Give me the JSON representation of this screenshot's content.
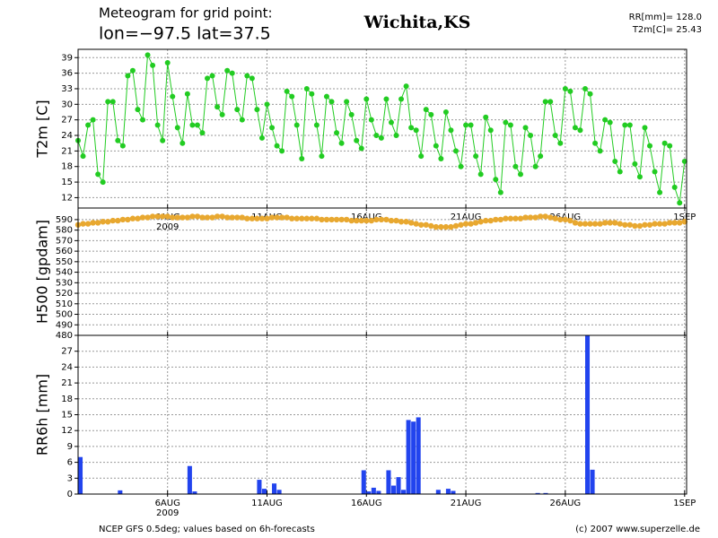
{
  "header": {
    "title_line1": "Meteogram for grid point:",
    "title_line2": "lon=−97.5  lat=37.5",
    "location": "Wichita,KS",
    "summary_rr": "RR[mm]= 128.0",
    "summary_t2m": "T2m[C]= 25.43"
  },
  "footer": {
    "source": "NCEP GFS 0.5deg; values based on 6h-forecasts",
    "credit": "(c) 2007 www.superzelle.de"
  },
  "chart_data": [
    {
      "type": "line",
      "y_label": "T2m [C]",
      "color": "#22cc22",
      "ylim": [
        10,
        40.6
      ],
      "yticks": [
        12,
        15,
        18,
        21,
        24,
        27,
        30,
        33,
        36,
        39
      ],
      "grid": true,
      "xlim": [
        1.5,
        32.1
      ],
      "xticks": [
        {
          "value": 6,
          "label": "6AUG"
        },
        {
          "value": 11,
          "label": "11AUG"
        },
        {
          "value": 16,
          "label": "16AUG"
        },
        {
          "value": 21,
          "label": "21AUG"
        },
        {
          "value": 26,
          "label": "26AUG"
        },
        {
          "value": 32,
          "label": "1SEP"
        }
      ],
      "year_label": "2009",
      "x": [
        1.5,
        1.75,
        2,
        2.25,
        2.5,
        2.75,
        3,
        3.25,
        3.5,
        3.75,
        4,
        4.25,
        4.5,
        4.75,
        5,
        5.25,
        5.5,
        5.75,
        6,
        6.25,
        6.5,
        6.75,
        7,
        7.25,
        7.5,
        7.75,
        8,
        8.25,
        8.5,
        8.75,
        9,
        9.25,
        9.5,
        9.75,
        10,
        10.25,
        10.5,
        10.75,
        11,
        11.25,
        11.5,
        11.75,
        12,
        12.25,
        12.5,
        12.75,
        13,
        13.25,
        13.5,
        13.75,
        14,
        14.25,
        14.5,
        14.75,
        15,
        15.25,
        15.5,
        15.75,
        16,
        16.25,
        16.5,
        16.75,
        17,
        17.25,
        17.5,
        17.75,
        18,
        18.25,
        18.5,
        18.75,
        19,
        19.25,
        19.5,
        19.75,
        20,
        20.25,
        20.5,
        20.75,
        21,
        21.25,
        21.5,
        21.75,
        22,
        22.25,
        22.5,
        22.75,
        23,
        23.25,
        23.5,
        23.75,
        24,
        24.25,
        24.5,
        24.75,
        25,
        25.25,
        25.5,
        25.75,
        26,
        26.25,
        26.5,
        26.75,
        27,
        27.25,
        27.5,
        27.75,
        28,
        28.25,
        28.5,
        28.75,
        29,
        29.25,
        29.5,
        29.75,
        30,
        30.25,
        30.5,
        30.75,
        31,
        31.25,
        31.5,
        31.75,
        32
      ],
      "values": [
        23,
        20,
        26,
        27,
        16.5,
        15,
        30.5,
        30.5,
        23,
        22,
        35.5,
        36.5,
        29,
        27,
        39.5,
        37.5,
        26,
        23,
        38,
        31.5,
        25.5,
        22.5,
        32,
        26,
        26,
        24.5,
        35,
        35.5,
        29.5,
        28,
        36.5,
        36,
        29,
        27,
        35.5,
        35,
        29,
        23.5,
        30,
        25.5,
        22,
        21,
        32.5,
        31.5,
        26,
        19.5,
        33,
        32,
        26,
        20,
        31.5,
        30.5,
        24.5,
        22.5,
        30.5,
        28,
        23,
        21.5,
        31,
        27,
        24,
        23.5,
        31,
        26.5,
        24,
        31,
        33.5,
        25.5,
        25,
        20,
        29,
        28,
        22,
        19.5,
        28.5,
        25,
        21,
        18,
        26,
        26,
        20,
        16.5,
        27.5,
        25,
        15.5,
        13,
        26.5,
        26,
        18,
        16.5,
        25.5,
        24,
        18,
        20,
        30.5,
        30.5,
        24,
        22.5,
        33,
        32.5,
        25.5,
        25,
        33,
        32,
        22.5,
        21,
        27,
        26.5,
        19,
        17,
        26,
        26,
        18.5,
        16,
        25.5,
        22,
        17,
        13,
        22.5,
        22,
        14,
        11,
        19
      ]
    },
    {
      "type": "scatter",
      "y_label": "H500 [gpdam]",
      "color": "#e8a830",
      "ylim": [
        480,
        601
      ],
      "yticks": [
        480,
        490,
        500,
        510,
        520,
        530,
        540,
        550,
        560,
        570,
        580,
        590
      ],
      "grid": true,
      "xlim": [
        1.5,
        32.1
      ],
      "xticks": [
        {
          "value": 6,
          "label": "6AUG"
        },
        {
          "value": 11,
          "label": "11AUG"
        },
        {
          "value": 16,
          "label": "16AUG"
        },
        {
          "value": 21,
          "label": "21AUG"
        },
        {
          "value": 26,
          "label": "26AUG"
        },
        {
          "value": 32,
          "label": "1SEP"
        }
      ],
      "x": [
        1.5,
        1.75,
        2,
        2.25,
        2.5,
        2.75,
        3,
        3.25,
        3.5,
        3.75,
        4,
        4.25,
        4.5,
        4.75,
        5,
        5.25,
        5.5,
        5.75,
        6,
        6.25,
        6.5,
        6.75,
        7,
        7.25,
        7.5,
        7.75,
        8,
        8.25,
        8.5,
        8.75,
        9,
        9.25,
        9.5,
        9.75,
        10,
        10.25,
        10.5,
        10.75,
        11,
        11.25,
        11.5,
        11.75,
        12,
        12.25,
        12.5,
        12.75,
        13,
        13.25,
        13.5,
        13.75,
        14,
        14.25,
        14.5,
        14.75,
        15,
        15.25,
        15.5,
        15.75,
        16,
        16.25,
        16.5,
        16.75,
        17,
        17.25,
        17.5,
        17.75,
        18,
        18.25,
        18.5,
        18.75,
        19,
        19.25,
        19.5,
        19.75,
        20,
        20.25,
        20.5,
        20.75,
        21,
        21.25,
        21.5,
        21.75,
        22,
        22.25,
        22.5,
        22.75,
        23,
        23.25,
        23.5,
        23.75,
        24,
        24.25,
        24.5,
        24.75,
        25,
        25.25,
        25.5,
        25.75,
        26,
        26.25,
        26.5,
        26.75,
        27,
        27.25,
        27.5,
        27.75,
        28,
        28.25,
        28.5,
        28.75,
        29,
        29.25,
        29.5,
        29.75,
        30,
        30.25,
        30.5,
        30.75,
        31,
        31.25,
        31.5,
        31.75,
        32
      ],
      "values": [
        585,
        586,
        586,
        587,
        587,
        588,
        588,
        589,
        589,
        590,
        590,
        591,
        591,
        592,
        592,
        593,
        593,
        593,
        593,
        592,
        592,
        592,
        592,
        593,
        593,
        592,
        592,
        592,
        593,
        593,
        592,
        592,
        592,
        592,
        591,
        591,
        591,
        591,
        591,
        592,
        592,
        592,
        592,
        591,
        591,
        591,
        591,
        591,
        591,
        590,
        590,
        590,
        590,
        590,
        590,
        589,
        589,
        589,
        589,
        589,
        590,
        590,
        590,
        589,
        589,
        588,
        588,
        587,
        586,
        585,
        585,
        584,
        583,
        583,
        583,
        583,
        584,
        585,
        586,
        586,
        587,
        588,
        589,
        589,
        590,
        590,
        591,
        591,
        591,
        591,
        592,
        592,
        592,
        593,
        593,
        592,
        591,
        590,
        590,
        589,
        587,
        586,
        586,
        586,
        586,
        586,
        587,
        587,
        587,
        586,
        585,
        585,
        584,
        584,
        585,
        585,
        586,
        586,
        586,
        587,
        587,
        587,
        588
      ]
    },
    {
      "type": "bar",
      "y_label": "RR6h [mm]",
      "color": "#2244ee",
      "ylim": [
        0,
        30
      ],
      "yticks": [
        0,
        3,
        6,
        9,
        12,
        15,
        18,
        21,
        24,
        27
      ],
      "grid": true,
      "bar_width": 0.25,
      "xlim": [
        1.5,
        32.1
      ],
      "xticks": [
        {
          "value": 6,
          "label": "6AUG"
        },
        {
          "value": 11,
          "label": "11AUG"
        },
        {
          "value": 16,
          "label": "16AUG"
        },
        {
          "value": 21,
          "label": "21AUG"
        },
        {
          "value": 26,
          "label": "26AUG"
        },
        {
          "value": 32,
          "label": "1SEP"
        }
      ],
      "year_label": "2009",
      "x": [
        1.5,
        3.5,
        7,
        7.25,
        10.5,
        10.75,
        11.25,
        11.5,
        15.75,
        16,
        16.25,
        16.5,
        17,
        17.25,
        17.5,
        17.75,
        18,
        18.25,
        18.5,
        19.5,
        20,
        20.25,
        24.5,
        24.9,
        27,
        27.25
      ],
      "values": [
        7,
        0.7,
        5.3,
        0.5,
        2.7,
        1,
        2,
        0.8,
        4.5,
        0.5,
        1.2,
        0.6,
        4.5,
        1.6,
        3.2,
        0.8,
        14,
        13.7,
        14.5,
        0.8,
        1,
        0.6,
        0.2,
        0.2,
        30,
        4.6
      ]
    }
  ]
}
